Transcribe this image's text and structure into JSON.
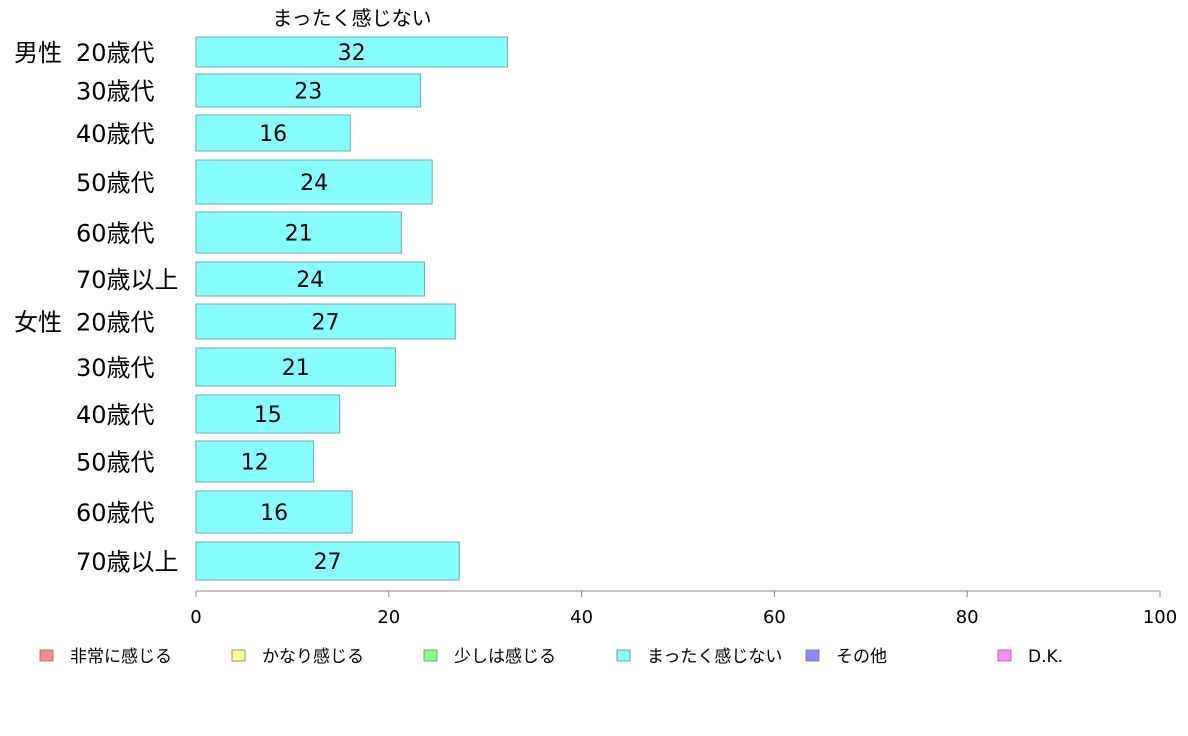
{
  "chart_data": {
    "type": "bar",
    "orientation": "horizontal",
    "title": "",
    "series_title": "まったく感じない",
    "categories": [
      {
        "group": "男性",
        "label": "20歳代"
      },
      {
        "group": "",
        "label": "30歳代"
      },
      {
        "group": "",
        "label": "40歳代"
      },
      {
        "group": "",
        "label": "50歳代"
      },
      {
        "group": "",
        "label": "60歳代"
      },
      {
        "group": "",
        "label": "70歳以上"
      },
      {
        "group": "女性",
        "label": "20歳代"
      },
      {
        "group": "",
        "label": "30歳代"
      },
      {
        "group": "",
        "label": "40歳代"
      },
      {
        "group": "",
        "label": "50歳代"
      },
      {
        "group": "",
        "label": "60歳代"
      },
      {
        "group": "",
        "label": "70歳以上"
      }
    ],
    "values": [
      32.3,
      23.3,
      16.0,
      24.5,
      21.3,
      23.7,
      26.9,
      20.7,
      14.9,
      12.2,
      16.2,
      27.3
    ],
    "value_labels": [
      "32",
      "23",
      "16",
      "24",
      "21",
      "24",
      "27",
      "21",
      "15",
      "12",
      "16",
      "27"
    ],
    "bar_color": "#88ffff",
    "bar_border_color": "#6fa8a8",
    "xlim": [
      0,
      100
    ],
    "xticks": [
      "0",
      "20",
      "40",
      "60",
      "80",
      "100"
    ],
    "xtick_values": [
      0,
      20,
      40,
      60,
      80,
      100
    ],
    "grid": false,
    "legend_position": "bottom",
    "legend": [
      {
        "label": "非常に感じる",
        "color": "#ff8888"
      },
      {
        "label": "かなり感じる",
        "color": "#ffff88"
      },
      {
        "label": "少しは感じる",
        "color": "#88ff88"
      },
      {
        "label": "まったく感じない",
        "color": "#88ffff"
      },
      {
        "label": "その他",
        "color": "#8888ff"
      },
      {
        "label": "D.K.",
        "color": "#ff88ff"
      }
    ]
  }
}
